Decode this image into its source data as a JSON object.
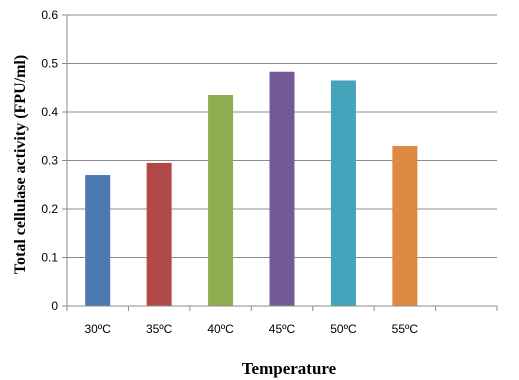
{
  "chart_data": {
    "type": "bar",
    "title": "",
    "xlabel": "Temperature",
    "ylabel": "Total cellulase activity (FPU/ml)",
    "categories": [
      "30ºC",
      "35ºC",
      "40ºC",
      "45ºC",
      "50ºC",
      "55ºC"
    ],
    "values": [
      0.27,
      0.295,
      0.435,
      0.483,
      0.465,
      0.33
    ],
    "colors": [
      "#4a78b0",
      "#b04948",
      "#8eac50",
      "#735996",
      "#46a3bc",
      "#de8a41"
    ],
    "ylim": [
      0,
      0.6
    ],
    "yticks": [
      "0",
      "0.1",
      "0.2",
      "0.3",
      "0.4",
      "0.5",
      "0.6"
    ],
    "grid": true,
    "gridColor": "#8c8c8c",
    "legend": "none"
  }
}
